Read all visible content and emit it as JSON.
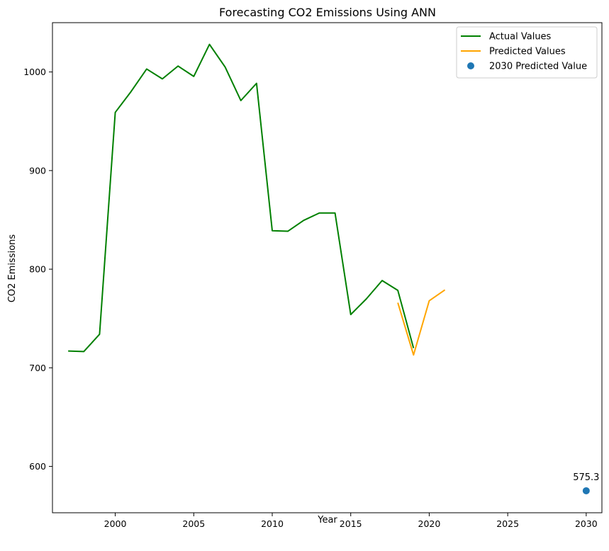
{
  "chart_data": {
    "type": "line",
    "title": "Forecasting CO2 Emissions Using ANN",
    "xlabel": "Year",
    "ylabel": "CO2 Emissions",
    "xlim": [
      1996,
      2031
    ],
    "ylim": [
      553,
      1050
    ],
    "xticks": [
      2000,
      2005,
      2010,
      2015,
      2020,
      2025,
      2030
    ],
    "yticks": [
      600,
      700,
      800,
      900,
      1000
    ],
    "grid": false,
    "legend_position": "top-right",
    "series": [
      {
        "name": "Actual Values",
        "color": "#008000",
        "kind": "line",
        "x": [
          1997,
          1998,
          1999,
          2000,
          2001,
          2002,
          2003,
          2004,
          2005,
          2006,
          2007,
          2008,
          2009,
          2010,
          2011,
          2012,
          2013,
          2014,
          2015,
          2016,
          2017,
          2018,
          2019
        ],
        "y": [
          717,
          716.5,
          734,
          959,
          980,
          1003,
          993,
          1006,
          995.5,
          1028,
          1005,
          971,
          988.5,
          839,
          838.5,
          849.5,
          857,
          857,
          754,
          770,
          788.5,
          778.5,
          720
        ]
      },
      {
        "name": "Predicted Values",
        "color": "#FFA500",
        "kind": "line",
        "x": [
          2018,
          2019,
          2020,
          2021
        ],
        "y": [
          766,
          713,
          768,
          779
        ]
      },
      {
        "name": "2030 Predicted Value",
        "color": "#1F77B4",
        "kind": "scatter",
        "x": [
          2030
        ],
        "y": [
          575.3
        ]
      }
    ],
    "annotations": [
      {
        "text": "575.3",
        "x": 2030,
        "y": 575.3
      }
    ]
  }
}
